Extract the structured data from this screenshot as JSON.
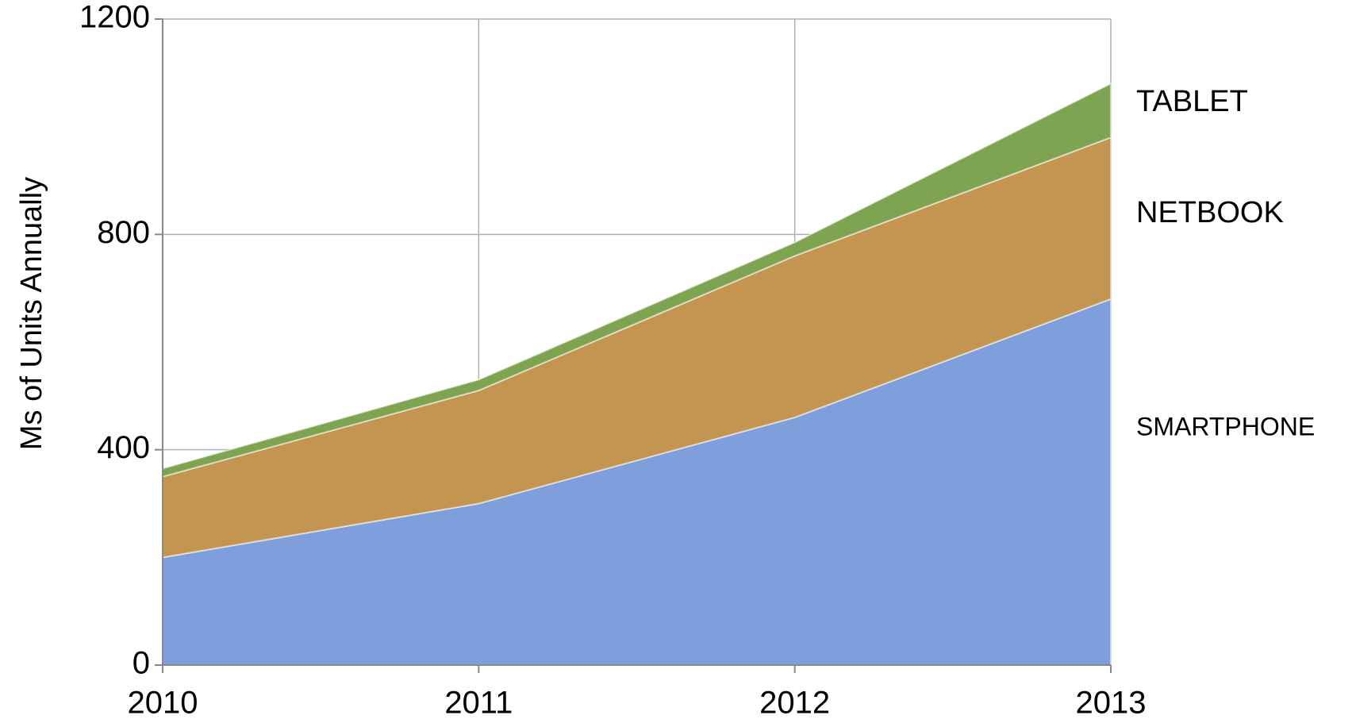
{
  "chart_data": {
    "type": "stacked-area",
    "y_label": "Ms of Units Annually",
    "x": [
      2010,
      2011,
      2012,
      2013
    ],
    "xlim": [
      2010,
      2013
    ],
    "xticks": [
      2010,
      2011,
      2012,
      2013
    ],
    "ylim": [
      0,
      1200
    ],
    "yticks": [
      0,
      400,
      800,
      1200
    ],
    "grid": true,
    "series": [
      {
        "name": "SMARTPHONE",
        "color": "#7f9fdc",
        "values": [
          200,
          300,
          460,
          680
        ]
      },
      {
        "name": "NETBOOK",
        "color": "#c39550",
        "values": [
          150,
          210,
          300,
          300
        ]
      },
      {
        "name": "TABLET",
        "color": "#7fa451",
        "values": [
          15,
          20,
          25,
          100
        ]
      }
    ]
  }
}
